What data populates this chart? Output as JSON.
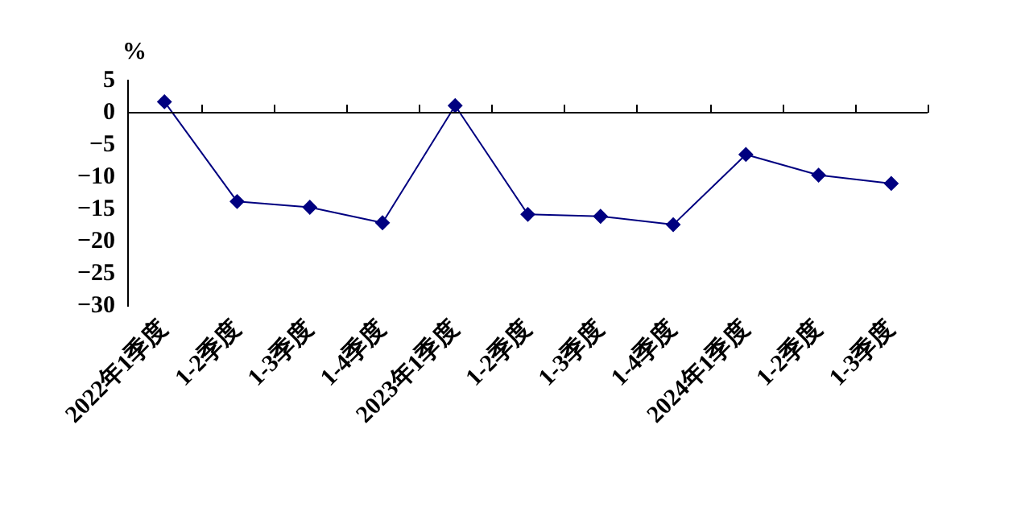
{
  "chart_data": {
    "type": "line",
    "ylabel": "%",
    "categories": [
      "2022年1季度",
      "1-2季度",
      "1-3季度",
      "1-4季度",
      "2023年1季度",
      "1-2季度",
      "1-3季度",
      "1-4季度",
      "2024年1季度",
      "1-2季度",
      "1-3季度"
    ],
    "series": [
      {
        "color": "#000080",
        "values": [
          1.7,
          -13.8,
          -14.7,
          -17.1,
          1.1,
          -15.8,
          -16.1,
          -17.4,
          -6.5,
          -9.7,
          -11.0
        ]
      }
    ],
    "ylim": [
      -30,
      5
    ],
    "yticks": [
      -30,
      -25,
      -20,
      -15,
      -10,
      -5,
      0,
      5
    ],
    "marker": "diamond",
    "line_style": "solid",
    "legend": false
  }
}
